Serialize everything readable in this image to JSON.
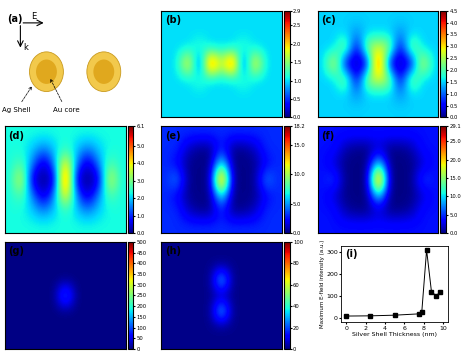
{
  "schematic": {
    "label": "(a)",
    "field": "E",
    "wavevector": "k",
    "shell": "Ag Shell",
    "core": "Au core"
  },
  "chart_data": [
    {
      "type": "heatmap",
      "label": "(b)",
      "tick_labels": false,
      "cells": [
        [
          1.0,
          1.0,
          1.0,
          1.0,
          1.0,
          1.0,
          1.0,
          1.0,
          1.0,
          1.0,
          1.0
        ],
        [
          1.0,
          1.0,
          1.0,
          1.0,
          1.0,
          1.0,
          1.0,
          1.0,
          1.0,
          1.0,
          1.0
        ],
        [
          1.0,
          1.0,
          1.0,
          1.2,
          1.0,
          1.0,
          1.0,
          1.2,
          1.0,
          1.0,
          1.0
        ],
        [
          1.0,
          1.0,
          2.2,
          0.2,
          2.9,
          1.6,
          2.9,
          0.2,
          2.2,
          1.0,
          1.0
        ],
        [
          1.0,
          1.0,
          1.0,
          1.2,
          1.0,
          1.0,
          1.0,
          1.2,
          1.0,
          1.0,
          1.0
        ],
        [
          1.0,
          1.0,
          1.0,
          1.0,
          1.0,
          1.0,
          1.0,
          1.0,
          1.0,
          1.0,
          1.0
        ],
        [
          1.0,
          1.0,
          1.0,
          1.0,
          1.0,
          1.0,
          1.0,
          1.0,
          1.0,
          1.0,
          1.0
        ]
      ],
      "colorbar_range": [
        0.0,
        2.9
      ],
      "colorbar_ticks": [
        0.0,
        0.5,
        1.0,
        1.5,
        2.0,
        2.5,
        2.9
      ]
    },
    {
      "type": "heatmap",
      "label": "(c)",
      "tick_labels": false,
      "cells": [
        [
          1.5,
          1.5,
          1.5,
          1.5,
          1.5,
          1.5,
          1.5,
          1.5,
          1.5,
          1.5,
          1.5
        ],
        [
          1.5,
          1.5,
          1.5,
          1.2,
          1.5,
          1.5,
          1.5,
          1.2,
          1.5,
          1.5,
          1.5
        ],
        [
          1.5,
          1.5,
          2.5,
          0.2,
          2.5,
          2.8,
          2.5,
          0.2,
          2.5,
          1.5,
          1.5
        ],
        [
          1.5,
          3.0,
          0.2,
          0.2,
          0.2,
          4.5,
          0.2,
          0.2,
          0.2,
          3.0,
          1.5
        ],
        [
          1.5,
          1.5,
          2.5,
          0.2,
          2.5,
          2.8,
          2.5,
          0.2,
          2.5,
          1.5,
          1.5
        ],
        [
          1.5,
          1.5,
          1.5,
          1.2,
          1.5,
          1.5,
          1.5,
          1.2,
          1.5,
          1.5,
          1.5
        ],
        [
          1.5,
          1.5,
          1.5,
          1.5,
          1.5,
          1.5,
          1.5,
          1.5,
          1.5,
          1.5,
          1.5
        ]
      ],
      "colorbar_range": [
        0.0,
        4.5
      ],
      "colorbar_ticks": [
        0.0,
        0.5,
        1.0,
        1.5,
        2.0,
        2.5,
        3.0,
        3.5,
        4.0,
        4.5
      ]
    },
    {
      "type": "heatmap",
      "label": "(d)",
      "tick_labels": false,
      "cells": [
        [
          2.3,
          2.3,
          2.3,
          2.3,
          2.3,
          2.3,
          2.3,
          2.3,
          2.3,
          2.3,
          2.3
        ],
        [
          2.3,
          2.3,
          2.0,
          1.5,
          2.0,
          2.5,
          2.0,
          1.5,
          2.0,
          2.3,
          2.3
        ],
        [
          2.3,
          2.8,
          1.5,
          0.2,
          1.5,
          4.5,
          1.5,
          0.2,
          1.5,
          2.8,
          2.3
        ],
        [
          2.3,
          4.0,
          0.2,
          0.2,
          0.2,
          6.1,
          0.2,
          0.2,
          0.2,
          4.0,
          2.3
        ],
        [
          2.3,
          2.8,
          1.5,
          0.2,
          1.5,
          4.5,
          1.5,
          0.2,
          1.5,
          2.8,
          2.3
        ],
        [
          2.3,
          2.3,
          2.0,
          1.5,
          2.0,
          2.5,
          2.0,
          1.5,
          2.0,
          2.3,
          2.3
        ],
        [
          2.3,
          2.3,
          2.3,
          2.3,
          2.3,
          2.3,
          2.3,
          2.3,
          2.3,
          2.3,
          2.3
        ]
      ],
      "colorbar_range": [
        0.0,
        6.1
      ],
      "colorbar_ticks": [
        0.0,
        1.0,
        2.0,
        3.0,
        4.0,
        5.0,
        6.1
      ]
    },
    {
      "type": "heatmap",
      "label": "(e)",
      "tick_labels": false,
      "cells": [
        [
          3.0,
          3.0,
          3.0,
          3.0,
          3.0,
          3.0,
          3.0,
          3.0,
          3.0,
          3.0,
          3.0
        ],
        [
          3.0,
          3.0,
          1.0,
          0.2,
          0.2,
          3.0,
          0.2,
          0.2,
          1.0,
          3.0,
          3.0
        ],
        [
          3.0,
          2.0,
          0.2,
          0.2,
          0.2,
          8.0,
          0.2,
          0.2,
          0.2,
          2.0,
          3.0
        ],
        [
          3.0,
          5.0,
          0.2,
          0.2,
          0.2,
          18.2,
          0.2,
          0.2,
          0.2,
          5.0,
          3.0
        ],
        [
          3.0,
          2.0,
          0.2,
          0.2,
          0.2,
          8.0,
          0.2,
          0.2,
          0.2,
          2.0,
          3.0
        ],
        [
          3.0,
          3.0,
          1.0,
          0.2,
          0.2,
          3.0,
          0.2,
          0.2,
          1.0,
          3.0,
          3.0
        ],
        [
          3.0,
          3.0,
          3.0,
          3.0,
          3.0,
          3.0,
          3.0,
          3.0,
          3.0,
          3.0,
          3.0
        ]
      ],
      "colorbar_range": [
        0.0,
        18.2
      ],
      "colorbar_ticks": [
        0.0,
        5.0,
        10.0,
        15.0,
        18.2
      ]
    },
    {
      "type": "heatmap",
      "label": "(f)",
      "tick_labels": false,
      "cells": [
        [
          4.0,
          4.0,
          4.0,
          4.0,
          4.0,
          4.0,
          4.0,
          4.0,
          4.0,
          4.0,
          4.0
        ],
        [
          4.0,
          4.0,
          1.0,
          0.2,
          0.2,
          2.0,
          0.2,
          0.2,
          1.0,
          4.0,
          4.0
        ],
        [
          4.0,
          2.0,
          0.2,
          0.2,
          0.2,
          12.0,
          0.2,
          0.2,
          0.2,
          2.0,
          4.0
        ],
        [
          4.0,
          6.0,
          0.2,
          0.2,
          0.2,
          29.1,
          0.2,
          0.2,
          0.2,
          6.0,
          4.0
        ],
        [
          4.0,
          2.0,
          0.2,
          0.2,
          0.2,
          12.0,
          0.2,
          0.2,
          0.2,
          2.0,
          4.0
        ],
        [
          4.0,
          4.0,
          1.0,
          0.2,
          0.2,
          2.0,
          0.2,
          0.2,
          1.0,
          4.0,
          4.0
        ],
        [
          4.0,
          4.0,
          4.0,
          4.0,
          4.0,
          4.0,
          4.0,
          4.0,
          4.0,
          4.0,
          4.0
        ]
      ],
      "colorbar_range": [
        0.0,
        29.1
      ],
      "colorbar_ticks": [
        0.0,
        5.0,
        10.0,
        15.0,
        20.0,
        25.0,
        29.1
      ]
    },
    {
      "type": "heatmap",
      "label": "(g)",
      "tick_labels": false,
      "cells": [
        [
          2,
          2,
          2,
          2,
          2,
          2,
          2,
          2,
          2,
          2,
          2
        ],
        [
          2,
          2,
          2,
          2,
          2,
          2,
          2,
          2,
          2,
          2,
          2
        ],
        [
          2,
          2,
          2,
          2,
          2,
          2,
          2,
          2,
          2,
          2,
          2
        ],
        [
          2,
          2,
          2,
          2,
          2,
          150,
          2,
          2,
          2,
          2,
          2
        ],
        [
          2,
          2,
          2,
          2,
          2,
          2,
          2,
          2,
          2,
          2,
          2
        ],
        [
          2,
          2,
          2,
          2,
          2,
          2,
          2,
          2,
          2,
          2,
          2
        ],
        [
          2,
          2,
          2,
          2,
          2,
          2,
          2,
          2,
          2,
          2,
          2
        ]
      ],
      "colorbar_range": [
        0,
        500
      ],
      "colorbar_ticks": [
        0,
        50,
        100,
        150,
        200,
        250,
        300,
        350,
        400,
        450,
        500
      ]
    },
    {
      "type": "heatmap",
      "label": "(h)",
      "tick_labels": false,
      "cells": [
        [
          1,
          1,
          1,
          1,
          1,
          1,
          1,
          1,
          1,
          1,
          1
        ],
        [
          1,
          1,
          1,
          1,
          1,
          1,
          1,
          1,
          1,
          1,
          1
        ],
        [
          1,
          1,
          1,
          1,
          1,
          40,
          1,
          1,
          1,
          1,
          1
        ],
        [
          1,
          1,
          1,
          1,
          1,
          1,
          1,
          1,
          1,
          1,
          1
        ],
        [
          1,
          1,
          1,
          1,
          1,
          40,
          1,
          1,
          1,
          1,
          1
        ],
        [
          1,
          1,
          1,
          1,
          1,
          1,
          1,
          1,
          1,
          1,
          1
        ],
        [
          1,
          1,
          1,
          1,
          1,
          1,
          1,
          1,
          1,
          1,
          1
        ]
      ],
      "colorbar_range": [
        0,
        100
      ],
      "colorbar_ticks": [
        0,
        20,
        40,
        60,
        80,
        100
      ]
    },
    {
      "type": "line",
      "label": "(i)",
      "x_label": "Silver Shell Thickness (nm)",
      "y_label": "Maximum E-field intensity (a.u.)",
      "color": "#000000",
      "marker": "square",
      "x": [
        0,
        2.5,
        5,
        7.5,
        7.8,
        8.3,
        8.8,
        9.3,
        9.7
      ],
      "values": [
        8,
        9,
        12,
        18,
        25,
        310,
        120,
        100,
        120
      ],
      "xlim": [
        -0.5,
        10.5
      ],
      "xticks": [
        0,
        2,
        4,
        6,
        8,
        10
      ],
      "ylim": [
        -20,
        330
      ],
      "yticks": [
        0,
        100,
        200,
        300
      ]
    }
  ]
}
